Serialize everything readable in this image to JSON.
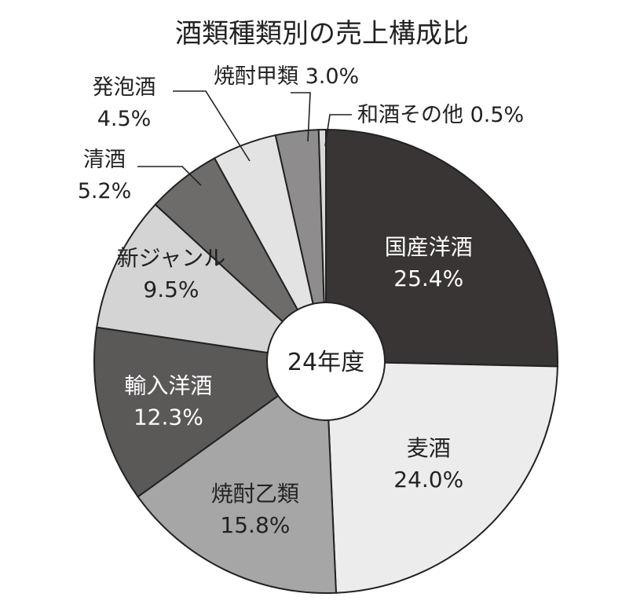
{
  "chart_data": {
    "type": "pie",
    "title": "酒類種類別の売上構成比",
    "center_label": "24年度",
    "unit": "%",
    "slices": [
      {
        "name": "国産洋酒",
        "value": 25.4,
        "label": "25.4%",
        "color": "#3a3535"
      },
      {
        "name": "麦酒",
        "value": 24.0,
        "label": "24.0%",
        "color": "#ececec"
      },
      {
        "name": "焼酎乙類",
        "value": 15.8,
        "label": "15.8%",
        "color": "#a6a6a6"
      },
      {
        "name": "輸入洋酒",
        "value": 12.3,
        "label": "12.3%",
        "color": "#5b5858"
      },
      {
        "name": "新ジャンル",
        "value": 9.5,
        "label": "9.5%",
        "color": "#d4d4d4"
      },
      {
        "name": "清酒",
        "value": 5.2,
        "label": "5.2%",
        "color": "#6e6b6b"
      },
      {
        "name": "発泡酒",
        "value": 4.5,
        "label": "4.5%",
        "color": "#e3e3e3"
      },
      {
        "name": "焼酎甲類",
        "value": 3.0,
        "label": "3.0%",
        "color": "#8e8c8c"
      },
      {
        "name": "和酒その他",
        "value": 0.5,
        "label": "0.5%",
        "color": "#d9d9d9"
      }
    ]
  }
}
